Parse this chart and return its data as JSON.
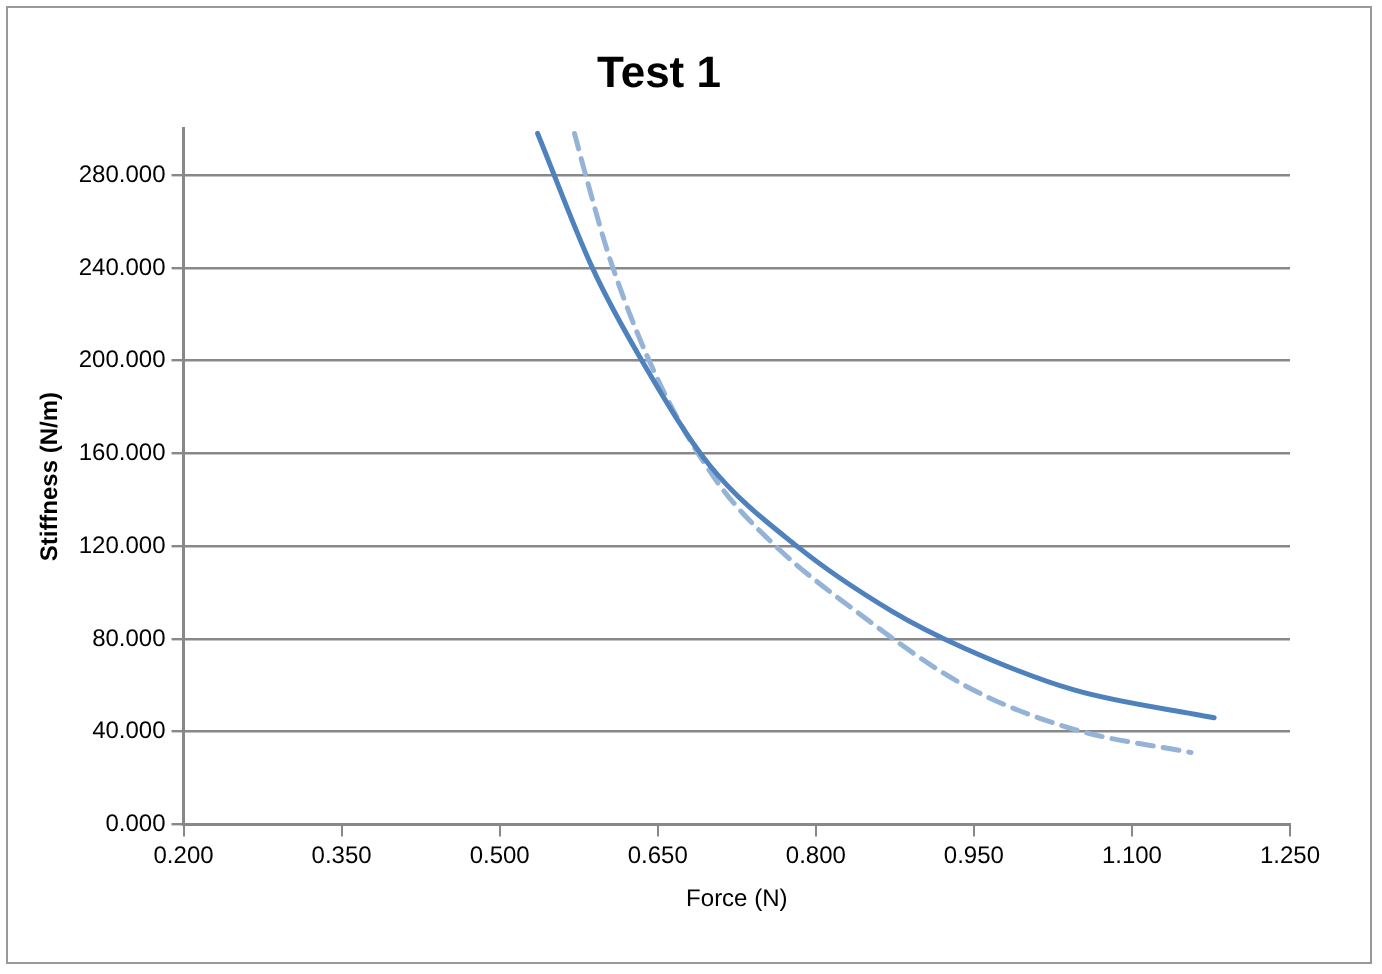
{
  "chart_data": {
    "type": "line",
    "title": "Test 1",
    "xlabel": "Force (N)",
    "ylabel": "Stiffness (N/m)",
    "xlim": [
      0.2,
      1.25
    ],
    "ylim": [
      0,
      300
    ],
    "xticks": [
      {
        "value": 0.2,
        "label": "0.200"
      },
      {
        "value": 0.35,
        "label": "0.350"
      },
      {
        "value": 0.5,
        "label": "0.500"
      },
      {
        "value": 0.65,
        "label": "0.650"
      },
      {
        "value": 0.8,
        "label": "0.800"
      },
      {
        "value": 0.95,
        "label": "0.950"
      },
      {
        "value": 1.1,
        "label": "1.100"
      },
      {
        "value": 1.25,
        "label": "1.250"
      }
    ],
    "yticks": [
      {
        "value": 0,
        "label": "0.000"
      },
      {
        "value": 40,
        "label": "40.000"
      },
      {
        "value": 80,
        "label": "80.000"
      },
      {
        "value": 120,
        "label": "120.000"
      },
      {
        "value": 160,
        "label": "160.000"
      },
      {
        "value": 200,
        "label": "200.000"
      },
      {
        "value": 240,
        "label": "240.000"
      },
      {
        "value": 280,
        "label": "280.000"
      }
    ],
    "grid": "y",
    "legend": false,
    "marker": "none",
    "series": [
      {
        "color": "#4f81bd",
        "line_style": "solid",
        "x": [
          0.536,
          0.588,
          0.635,
          0.699,
          0.782,
          0.872,
          0.941,
          1.045,
          1.178
        ],
        "values": [
          298,
          240,
          200,
          155,
          120,
          92,
          76,
          58,
          46
        ]
      },
      {
        "color": "#95b3d7",
        "line_style": "dashed",
        "x": [
          0.571,
          0.581,
          0.606,
          0.651,
          0.706,
          0.762,
          0.838,
          0.941,
          1.045,
          1.156
        ],
        "values": [
          298,
          281,
          242,
          191,
          148,
          120,
          92,
          60,
          41,
          31
        ]
      }
    ]
  }
}
